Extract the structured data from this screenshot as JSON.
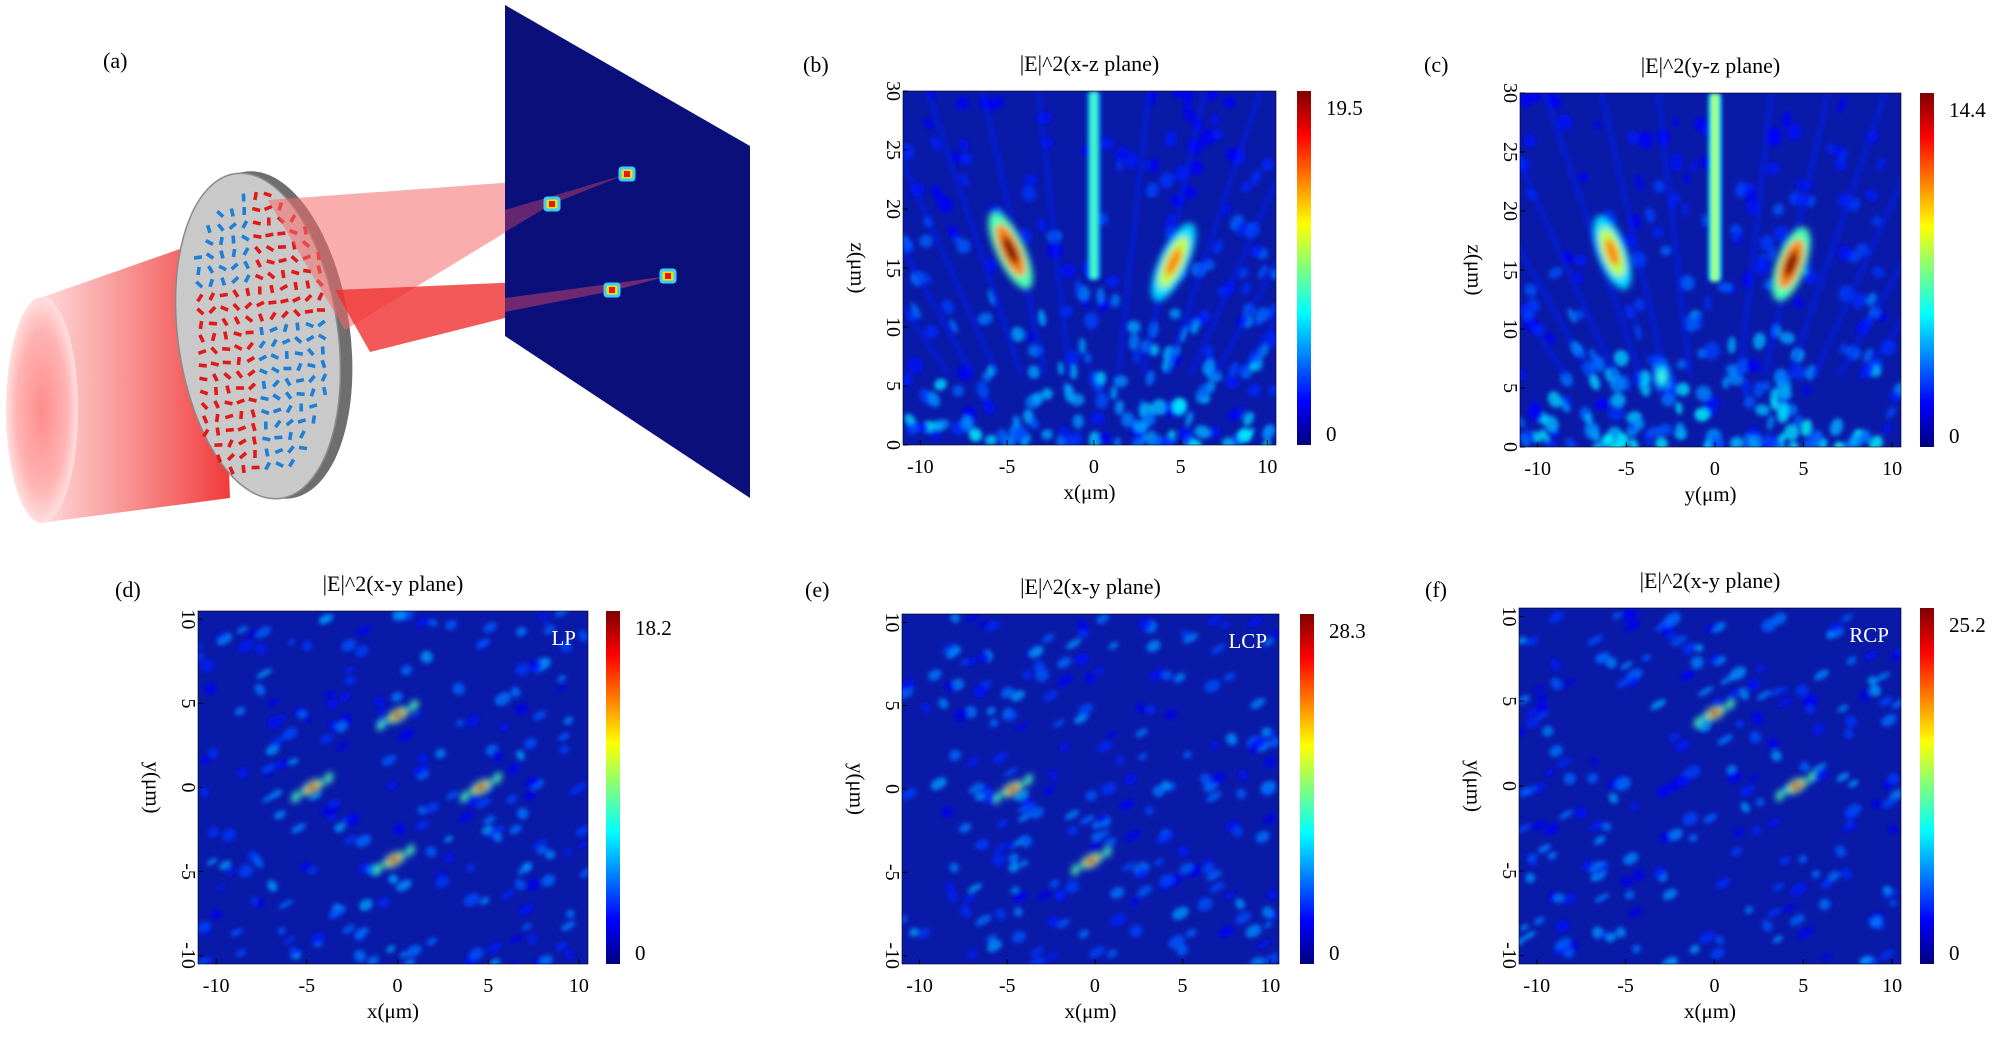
{
  "figure": {
    "schematic": {
      "label": "(a)",
      "description_colors": {
        "beam": "#e8202a",
        "screen": "#0a0f7a",
        "metasurface_disk": "#bdbdbd",
        "element_red": "#e01a1a",
        "element_blue": "#1e7fd6"
      },
      "focal_spots": 4
    },
    "colormap": [
      "#00007f",
      "#0000ff",
      "#007fff",
      "#00ffff",
      "#7fff7f",
      "#ffff00",
      "#ff7f00",
      "#ff0000",
      "#7f0000"
    ],
    "background_color": "#0a1aa8",
    "panels": [
      {
        "id": "b",
        "label": "(b)",
        "title": "|E|^2(x-z plane)",
        "xlabel": "x(μm)",
        "ylabel": "z(μm)",
        "xticks": [
          "-10",
          "-5",
          "0",
          "5",
          "10"
        ],
        "xtick_values": [
          -10,
          -5,
          0,
          5,
          10
        ],
        "yticks": [
          "0",
          "5",
          "10",
          "15",
          "20",
          "25",
          "30"
        ],
        "ytick_values": [
          0,
          5,
          10,
          15,
          20,
          25,
          30
        ],
        "xlim": [
          -11,
          10.5
        ],
        "ylim": [
          0,
          30
        ],
        "colorbar": {
          "max": "19.5",
          "min": "0"
        },
        "corner_label": "",
        "hotspots": [
          {
            "x": -4.8,
            "y": 16.5,
            "peak": 1.0,
            "sx": 0.55,
            "sy": 2.4,
            "rot": -25
          },
          {
            "x": 4.6,
            "y": 15.5,
            "peak": 0.75,
            "sx": 0.55,
            "sy": 2.4,
            "rot": 25
          }
        ],
        "streaks": [
          {
            "x": 0,
            "y0": 14,
            "y1": 30,
            "peak": 0.45,
            "w": 0.35
          }
        ]
      },
      {
        "id": "c",
        "label": "(c)",
        "title": "|E|^2(y-z plane)",
        "xlabel": "y(μm)",
        "ylabel": "z(μm)",
        "xticks": [
          "-10",
          "-5",
          "0",
          "5",
          "10"
        ],
        "xtick_values": [
          -10,
          -5,
          0,
          5,
          10
        ],
        "yticks": [
          "0",
          "5",
          "10",
          "15",
          "20",
          "25",
          "30"
        ],
        "ytick_values": [
          0,
          5,
          10,
          15,
          20,
          25,
          30
        ],
        "xlim": [
          -11,
          10.5
        ],
        "ylim": [
          0,
          30
        ],
        "colorbar": {
          "max": "14.4",
          "min": "0"
        },
        "corner_label": "",
        "hotspots": [
          {
            "x": -5.8,
            "y": 16.5,
            "peak": 0.75,
            "sx": 0.55,
            "sy": 2.2,
            "rot": -20
          },
          {
            "x": 4.3,
            "y": 15.5,
            "peak": 1.0,
            "sx": 0.55,
            "sy": 2.2,
            "rot": 20
          },
          {
            "x": -3.0,
            "y": 6.0,
            "peak": 0.45,
            "sx": 0.35,
            "sy": 0.9,
            "rot": 0
          }
        ],
        "streaks": [
          {
            "x": 0,
            "y0": 14,
            "y1": 30,
            "peak": 0.55,
            "w": 0.35
          }
        ]
      },
      {
        "id": "d",
        "label": "(d)",
        "title": "|E|^2(x-y plane)",
        "xlabel": "x(μm)",
        "ylabel": "y(μm)",
        "xticks": [
          "-10",
          "-5",
          "0",
          "5",
          "10"
        ],
        "xtick_values": [
          -10,
          -5,
          0,
          5,
          10
        ],
        "yticks": [
          "-10",
          "-5",
          "0",
          "5",
          "10"
        ],
        "ytick_values": [
          -10,
          -5,
          0,
          5,
          10
        ],
        "xlim": [
          -11,
          10.5
        ],
        "ylim": [
          -10.5,
          10.5
        ],
        "colorbar": {
          "max": "18.2",
          "min": "0"
        },
        "corner_label": "LP",
        "hotspots": [
          {
            "x": 0.0,
            "y": 4.3,
            "peak": 1.0,
            "sx": 0.45,
            "sy": 0.25,
            "rot": -30
          },
          {
            "x": -4.7,
            "y": 0.0,
            "peak": 1.0,
            "sx": 0.45,
            "sy": 0.25,
            "rot": -30
          },
          {
            "x": 4.6,
            "y": 0.0,
            "peak": 1.0,
            "sx": 0.45,
            "sy": 0.25,
            "rot": -30
          },
          {
            "x": -0.2,
            "y": -4.3,
            "peak": 1.0,
            "sx": 0.45,
            "sy": 0.25,
            "rot": -30
          }
        ],
        "streaks": []
      },
      {
        "id": "e",
        "label": "(e)",
        "title": "|E|^2(x-y plane)",
        "xlabel": "x(μm)",
        "ylabel": "y(μm)",
        "xticks": [
          "-10",
          "-5",
          "0",
          "5",
          "10"
        ],
        "xtick_values": [
          -10,
          -5,
          0,
          5,
          10
        ],
        "yticks": [
          "-10",
          "-5",
          "0",
          "5",
          "10"
        ],
        "ytick_values": [
          -10,
          -5,
          0,
          5,
          10
        ],
        "xlim": [
          -11,
          10.5
        ],
        "ylim": [
          -10.5,
          10.5
        ],
        "colorbar": {
          "max": "28.3",
          "min": "0"
        },
        "corner_label": "LCP",
        "hotspots": [
          {
            "x": -4.7,
            "y": 0.0,
            "peak": 1.0,
            "sx": 0.45,
            "sy": 0.25,
            "rot": -30
          },
          {
            "x": -0.2,
            "y": -4.3,
            "peak": 1.0,
            "sx": 0.45,
            "sy": 0.25,
            "rot": -30
          }
        ],
        "streaks": []
      },
      {
        "id": "f",
        "label": "(f)",
        "title": "|E|^2(x-y plane)",
        "xlabel": "x(μm)",
        "ylabel": "y(μm)",
        "xticks": [
          "-10",
          "-5",
          "0",
          "5",
          "10"
        ],
        "xtick_values": [
          -10,
          -5,
          0,
          5,
          10
        ],
        "yticks": [
          "-10",
          "-5",
          "0",
          "5",
          "10"
        ],
        "ytick_values": [
          -10,
          -5,
          0,
          5,
          10
        ],
        "xlim": [
          -11,
          10.5
        ],
        "ylim": [
          -10.5,
          10.5
        ],
        "colorbar": {
          "max": "25.2",
          "min": "0"
        },
        "corner_label": "RCP",
        "hotspots": [
          {
            "x": 0.0,
            "y": 4.3,
            "peak": 1.0,
            "sx": 0.45,
            "sy": 0.25,
            "rot": -30
          },
          {
            "x": 4.6,
            "y": 0.0,
            "peak": 1.0,
            "sx": 0.45,
            "sy": 0.25,
            "rot": -30
          }
        ],
        "streaks": []
      }
    ]
  },
  "chart_data": [
    {
      "type": "heatmap",
      "title": "|E|^2(x-z plane)",
      "xlabel": "x(μm)",
      "ylabel": "z(μm)",
      "xlim": [
        -11,
        10.5
      ],
      "ylim": [
        0,
        30
      ],
      "colorbar_range": [
        0,
        19.5
      ],
      "peaks": [
        {
          "x": -4.8,
          "z": 16.5
        },
        {
          "x": 4.6,
          "z": 15.5
        }
      ]
    },
    {
      "type": "heatmap",
      "title": "|E|^2(y-z plane)",
      "xlabel": "y(μm)",
      "ylabel": "z(μm)",
      "xlim": [
        -11,
        10.5
      ],
      "ylim": [
        0,
        30
      ],
      "colorbar_range": [
        0,
        14.4
      ],
      "peaks": [
        {
          "y": -5.8,
          "z": 16.5
        },
        {
          "y": 4.3,
          "z": 15.5
        }
      ]
    },
    {
      "type": "heatmap",
      "title": "|E|^2(x-y plane)",
      "annotation": "LP",
      "xlabel": "x(μm)",
      "ylabel": "y(μm)",
      "xlim": [
        -11,
        10.5
      ],
      "ylim": [
        -10.5,
        10.5
      ],
      "colorbar_range": [
        0,
        18.2
      ],
      "peaks": [
        {
          "x": 0,
          "y": 4.3
        },
        {
          "x": -4.7,
          "y": 0
        },
        {
          "x": 4.6,
          "y": 0
        },
        {
          "x": -0.2,
          "y": -4.3
        }
      ]
    },
    {
      "type": "heatmap",
      "title": "|E|^2(x-y plane)",
      "annotation": "LCP",
      "xlabel": "x(μm)",
      "ylabel": "y(μm)",
      "xlim": [
        -11,
        10.5
      ],
      "ylim": [
        -10.5,
        10.5
      ],
      "colorbar_range": [
        0,
        28.3
      ],
      "peaks": [
        {
          "x": -4.7,
          "y": 0
        },
        {
          "x": -0.2,
          "y": -4.3
        }
      ]
    },
    {
      "type": "heatmap",
      "title": "|E|^2(x-y plane)",
      "annotation": "RCP",
      "xlabel": "x(μm)",
      "ylabel": "y(μm)",
      "xlim": [
        -11,
        10.5
      ],
      "ylim": [
        -10.5,
        10.5
      ],
      "colorbar_range": [
        0,
        25.2
      ],
      "peaks": [
        {
          "x": 0,
          "y": 4.3
        },
        {
          "x": 4.6,
          "y": 0
        }
      ]
    }
  ]
}
